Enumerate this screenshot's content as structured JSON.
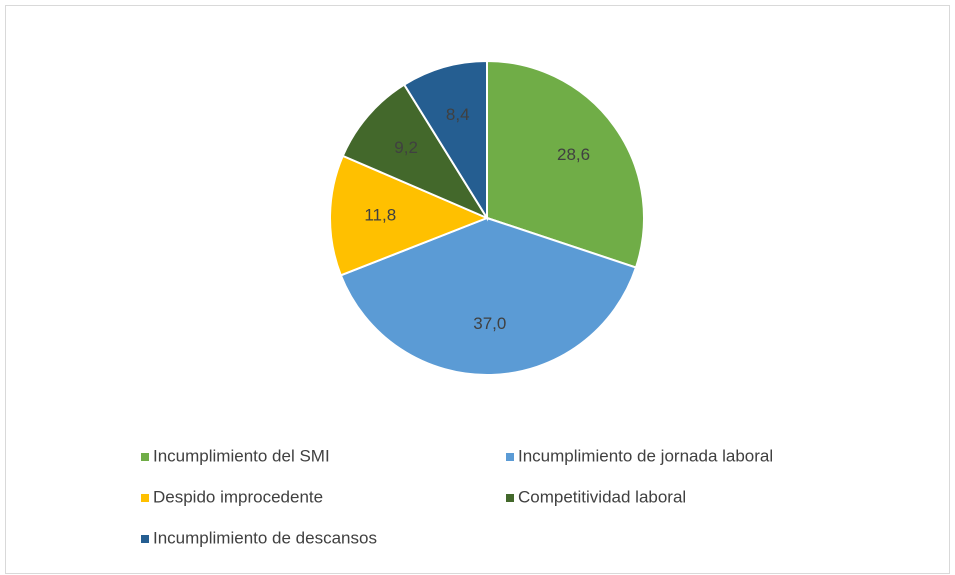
{
  "chart_data": {
    "type": "pie",
    "categories": [
      "Incumplimiento del SMI",
      "Incumplimiento de jornada laboral",
      "Despido improcedente",
      "Competitividad laboral",
      "Incumplimiento de descansos"
    ],
    "values": [
      28.6,
      37.0,
      11.8,
      9.2,
      8.4
    ],
    "value_labels": [
      "28,6",
      "37,0",
      "11,8",
      "9,2",
      "8,4"
    ],
    "colors": [
      "#70ad47",
      "#5b9bd5",
      "#ffc000",
      "#43682b",
      "#255e91"
    ],
    "legend": "bottom"
  }
}
